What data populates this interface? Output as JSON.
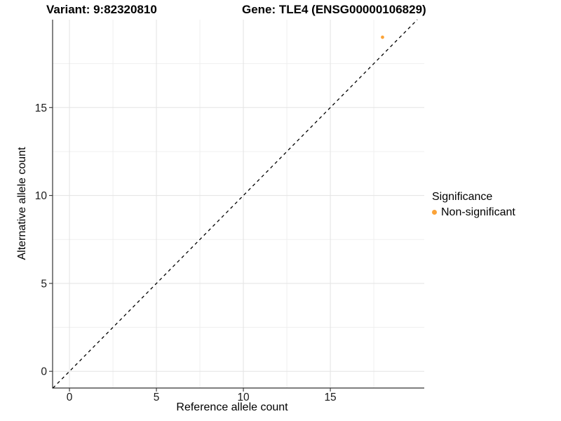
{
  "chart_data": {
    "type": "scatter",
    "titles": {
      "left": "Variant: 9:82320810",
      "right": "Gene: TLE4 (ENSG00000106829)"
    },
    "xlabel": "Reference allele count",
    "ylabel": "Alternative allele count",
    "xlim": [
      -0.97,
      20.4
    ],
    "ylim": [
      -0.95,
      20.0
    ],
    "x_ticks": [
      0,
      5,
      10,
      15
    ],
    "y_ticks": [
      0,
      5,
      10,
      15
    ],
    "x_minor_ticks": [
      2.5,
      7.5,
      12.5,
      17.5
    ],
    "y_minor_ticks": [
      2.5,
      7.5,
      12.5,
      17.5
    ],
    "grid": true,
    "points": [
      {
        "x": 18,
        "y": 19,
        "series": "Non-significant"
      }
    ],
    "reference_line": {
      "type": "identity",
      "style": "dashed",
      "color": "#000000"
    },
    "legend": {
      "title": "Significance",
      "position": "right",
      "items": [
        {
          "label": "Non-significant",
          "color": "#FBA338"
        }
      ]
    },
    "colors": {
      "point": "#FBA338",
      "grid_major": "#E3E3E3",
      "grid_minor": "#EFEFEF",
      "axis": "#333333",
      "tick": "#333333"
    }
  }
}
